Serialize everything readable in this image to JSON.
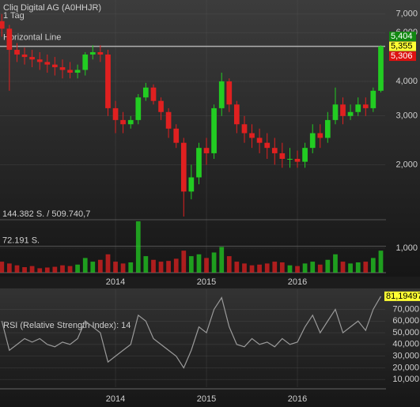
{
  "chart_data": [
    {
      "type": "candlestick",
      "title": "Cliq Digital AG (A0HHJR)",
      "subtitle": "1 Tag",
      "log_scale": true,
      "grid": true,
      "up_color": "#22cc22",
      "down_color": "#e02020",
      "x": [
        2012.75,
        2012.833,
        2012.917,
        2013.0,
        2013.083,
        2013.167,
        2013.25,
        2013.333,
        2013.417,
        2013.5,
        2013.583,
        2013.667,
        2013.75,
        2013.833,
        2013.917,
        2014.0,
        2014.083,
        2014.167,
        2014.25,
        2014.333,
        2014.417,
        2014.5,
        2014.583,
        2014.667,
        2014.75,
        2014.833,
        2014.917,
        2015.0,
        2015.083,
        2015.167,
        2015.25,
        2015.333,
        2015.417,
        2015.5,
        2015.583,
        2015.667,
        2015.75,
        2015.833,
        2015.917,
        2016.0,
        2016.083,
        2016.167,
        2016.25,
        2016.333,
        2016.417,
        2016.5,
        2016.583,
        2016.667,
        2016.75,
        2016.833,
        2016.917
      ],
      "open": [
        6600,
        6200,
        5200,
        5000,
        4900,
        4800,
        4700,
        4600,
        4500,
        4400,
        4300,
        4400,
        5000,
        5100,
        5000,
        3200,
        2900,
        2800,
        2900,
        3500,
        3800,
        3400,
        3100,
        2700,
        2400,
        1600,
        1800,
        2300,
        2200,
        3200,
        4000,
        3300,
        2800,
        2600,
        2500,
        2400,
        2300,
        2200,
        2100,
        2100,
        2050,
        2300,
        2600,
        2500,
        2900,
        3300,
        3000,
        3100,
        3300,
        3200,
        3700
      ],
      "high": [
        7000,
        6400,
        5500,
        5300,
        5200,
        5100,
        5000,
        4900,
        4800,
        4700,
        4600,
        5100,
        5400,
        5400,
        5200,
        3400,
        3100,
        3000,
        3600,
        3950,
        3900,
        3500,
        3200,
        2800,
        2500,
        2000,
        2400,
        2500,
        3300,
        4300,
        4100,
        3400,
        3000,
        2800,
        2700,
        2600,
        2500,
        2400,
        2300,
        2250,
        2400,
        2800,
        2800,
        3100,
        3800,
        3500,
        3300,
        3500,
        3500,
        3800,
        5404
      ],
      "low": [
        5800,
        3700,
        4700,
        4600,
        4500,
        4400,
        4300,
        4200,
        4100,
        4100,
        4100,
        4200,
        4800,
        4700,
        3000,
        2600,
        2600,
        2700,
        2800,
        3400,
        3300,
        2900,
        2500,
        2300,
        1300,
        1500,
        1700,
        2000,
        2100,
        3000,
        3100,
        2600,
        2400,
        2300,
        2200,
        2100,
        2000,
        1950,
        1950,
        1950,
        1950,
        2200,
        2300,
        2400,
        2800,
        2800,
        2900,
        3000,
        3000,
        3100,
        3650
      ],
      "close": [
        6200,
        5200,
        5000,
        4900,
        4800,
        4700,
        4600,
        4500,
        4400,
        4300,
        4400,
        5000,
        5100,
        5000,
        3200,
        2900,
        2800,
        2900,
        3500,
        3800,
        3400,
        3100,
        2700,
        2400,
        1600,
        1800,
        2300,
        2200,
        3200,
        4000,
        3300,
        2800,
        2600,
        2500,
        2400,
        2300,
        2200,
        2100,
        2100,
        2050,
        2300,
        2600,
        2500,
        2900,
        3300,
        3000,
        3100,
        3300,
        3200,
        3700,
        5355
      ],
      "volume": [
        30000,
        25000,
        20000,
        15000,
        18000,
        12000,
        14000,
        16000,
        20000,
        18000,
        22000,
        40000,
        30000,
        35000,
        50000,
        30000,
        25000,
        28000,
        140000,
        45000,
        35000,
        30000,
        32000,
        38000,
        60000,
        45000,
        50000,
        40000,
        55000,
        70000,
        45000,
        30000,
        25000,
        20000,
        22000,
        25000,
        30000,
        28000,
        20000,
        18000,
        25000,
        30000,
        22000,
        35000,
        50000,
        30000,
        25000,
        28000,
        30000,
        40000,
        60000
      ],
      "xlim": [
        2012.73,
        2016.965
      ],
      "xticks": [
        2014,
        2015,
        2016
      ],
      "ylim": [
        815,
        7870
      ],
      "yticks": [
        {
          "value": 1000,
          "label": "1,000"
        },
        {
          "value": 2000,
          "label": "2,000"
        },
        {
          "value": 3000,
          "label": "3,000"
        },
        {
          "value": 4000,
          "label": "4,000"
        },
        {
          "value": 6000,
          "label": "6,000"
        },
        {
          "value": 7000,
          "label": "7,000"
        }
      ],
      "volume_ylim": [
        0,
        144382
      ],
      "volume_yticks": [
        {
          "value": 72191,
          "label": "72.191 S."
        },
        {
          "value": 144382,
          "label": "144.382 S. / 509.740,7"
        }
      ],
      "hline": {
        "label": "Horizontal Line",
        "value": 5355,
        "color": "#b0b0b0"
      },
      "markers": [
        {
          "value": 5404,
          "label": "5,404",
          "color": "#118811"
        },
        {
          "value": 5355,
          "label": "5,355",
          "color": "#ffff33"
        },
        {
          "value": 5306,
          "label": "5,306",
          "color": "#dd1111"
        }
      ]
    },
    {
      "type": "line",
      "title": "RSI (Relative Strength Index): 14",
      "color": "#9a9a9a",
      "x": [
        2012.75,
        2012.833,
        2012.917,
        2013.0,
        2013.083,
        2013.167,
        2013.25,
        2013.333,
        2013.417,
        2013.5,
        2013.583,
        2013.667,
        2013.75,
        2013.833,
        2013.917,
        2014.0,
        2014.083,
        2014.167,
        2014.25,
        2014.333,
        2014.417,
        2014.5,
        2014.583,
        2014.667,
        2014.75,
        2014.833,
        2014.917,
        2015.0,
        2015.083,
        2015.167,
        2015.25,
        2015.333,
        2015.417,
        2015.5,
        2015.583,
        2015.667,
        2015.75,
        2015.833,
        2015.917,
        2016.0,
        2016.083,
        2016.167,
        2016.25,
        2016.333,
        2016.417,
        2016.5,
        2016.583,
        2016.667,
        2016.75,
        2016.833,
        2016.917
      ],
      "values": [
        60,
        35,
        40,
        45,
        42,
        45,
        40,
        38,
        42,
        40,
        45,
        60,
        55,
        50,
        25,
        30,
        35,
        40,
        65,
        60,
        45,
        40,
        35,
        30,
        20,
        35,
        55,
        50,
        70,
        80,
        55,
        40,
        38,
        45,
        40,
        42,
        38,
        45,
        40,
        42,
        55,
        65,
        50,
        60,
        70,
        50,
        55,
        60,
        52,
        70,
        81.19497
      ],
      "xlim": [
        2012.73,
        2016.965
      ],
      "xticks": [
        2014,
        2015,
        2016
      ],
      "ylim": [
        3.4,
        87.2
      ],
      "yticks": [
        {
          "value": 10,
          "label": "10,000"
        },
        {
          "value": 20,
          "label": "20,000"
        },
        {
          "value": 30,
          "label": "30,000"
        },
        {
          "value": 40,
          "label": "40,000"
        },
        {
          "value": 50,
          "label": "50,000"
        },
        {
          "value": 60,
          "label": "60,000"
        },
        {
          "value": 70,
          "label": "70,000"
        }
      ],
      "markers": [
        {
          "value": 81.19497,
          "label": "81,19497",
          "color": "#ffff33"
        }
      ]
    }
  ]
}
